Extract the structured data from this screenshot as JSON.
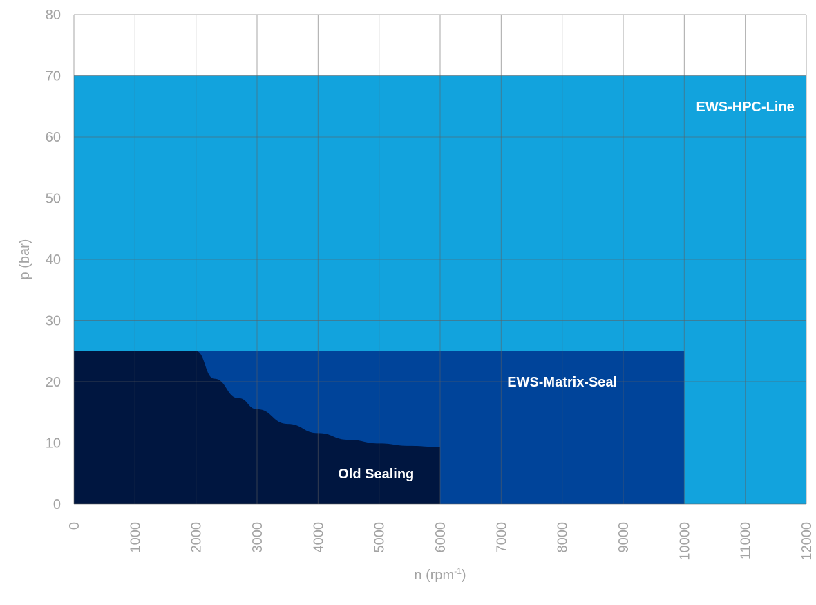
{
  "chart_data": {
    "type": "area",
    "xlabel": "n (rpm",
    "xlabel_sup": "-1",
    "xlabel_close": ")",
    "ylabel": "p (bar)",
    "xlim": [
      0,
      12000
    ],
    "ylim": [
      0,
      80
    ],
    "x_ticks": [
      "0",
      "1000",
      "2000",
      "3000",
      "4000",
      "5000",
      "6000",
      "7000",
      "8000",
      "9000",
      "10000",
      "11000",
      "12000"
    ],
    "y_ticks": [
      "0",
      "10",
      "20",
      "30",
      "40",
      "50",
      "60",
      "70",
      "80"
    ],
    "grid": true,
    "regions": [
      {
        "name": "EWS-HPC-Line",
        "color": "#12a3dd",
        "boundary": [
          [
            0,
            0
          ],
          [
            0,
            70
          ],
          [
            12000,
            70
          ],
          [
            12000,
            0
          ]
        ],
        "label_at": [
          11000,
          65
        ]
      },
      {
        "name": "EWS-Matrix-Seal",
        "color": "#00449a",
        "boundary": [
          [
            0,
            0
          ],
          [
            0,
            25
          ],
          [
            10000,
            25
          ],
          [
            10000,
            0
          ]
        ],
        "label_at": [
          8000,
          20
        ]
      },
      {
        "name": "Old Sealing",
        "color": "#001640",
        "boundary": [
          [
            0,
            0
          ],
          [
            0,
            25
          ],
          [
            2000,
            25
          ],
          [
            2300,
            20.5
          ],
          [
            2700,
            17.3
          ],
          [
            3000,
            15.5
          ],
          [
            3500,
            13.1
          ],
          [
            4000,
            11.6
          ],
          [
            4500,
            10.5
          ],
          [
            5000,
            9.9
          ],
          [
            5500,
            9.5
          ],
          [
            6000,
            9.3
          ],
          [
            6000,
            0
          ]
        ],
        "label_at": [
          4950,
          5
        ]
      }
    ]
  }
}
